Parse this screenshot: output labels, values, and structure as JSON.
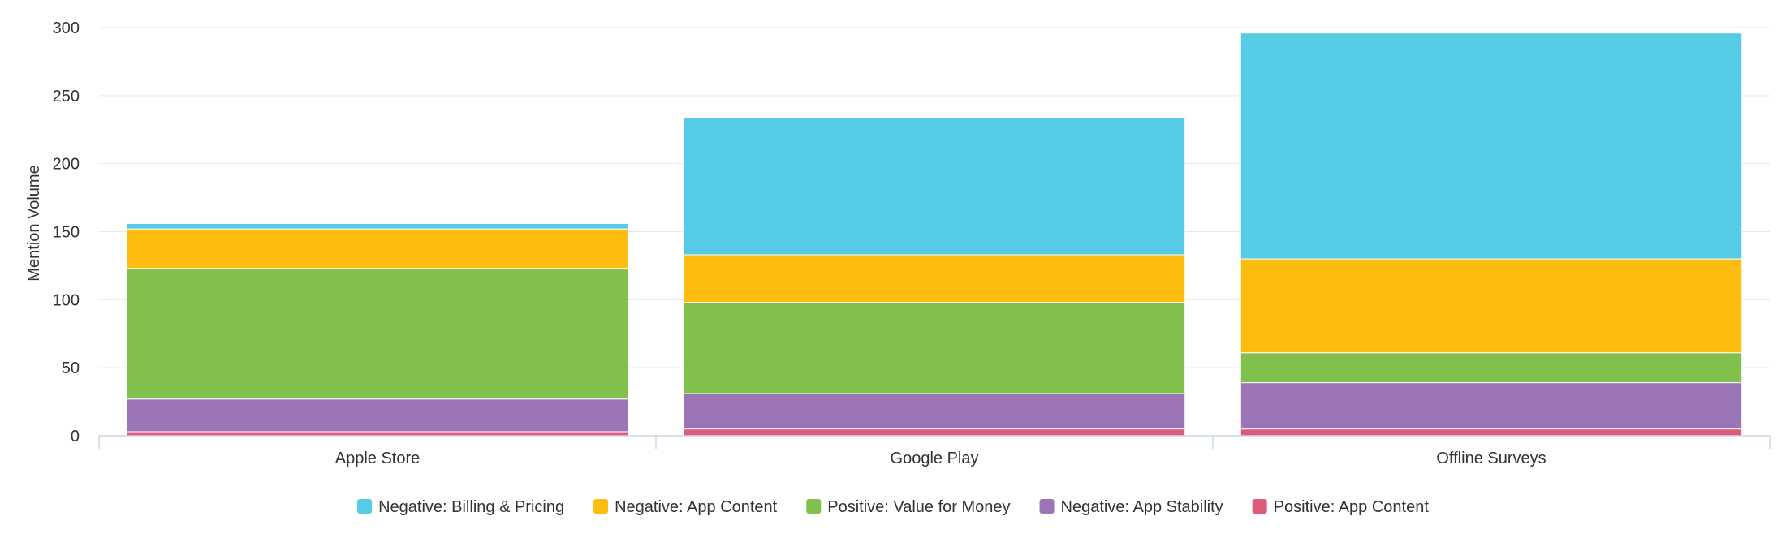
{
  "chart_data": {
    "type": "bar",
    "stacked": true,
    "categories": [
      "Apple Store",
      "Google Play",
      "Offline Surveys"
    ],
    "series": [
      {
        "name": "Positive: App Content",
        "color": "#e05a7a",
        "values": [
          3,
          5,
          5
        ]
      },
      {
        "name": "Negative: App Stability",
        "color": "#9b74b5",
        "values": [
          24,
          26,
          34
        ]
      },
      {
        "name": "Positive: Value for Money",
        "color": "#82c04e",
        "values": [
          96,
          67,
          22
        ]
      },
      {
        "name": "Negative: App Content",
        "color": "#fdbd10",
        "values": [
          29,
          35,
          69
        ]
      },
      {
        "name": "Negative: Billing & Pricing",
        "color": "#55cbe5",
        "values": [
          4,
          101,
          166
        ]
      }
    ],
    "legend_order": [
      "Negative: Billing & Pricing",
      "Negative: App Content",
      "Positive: Value for Money",
      "Negative: App Stability",
      "Positive: App Content"
    ],
    "ylabel": "Mention Volume",
    "xlabel": "",
    "ylim": [
      0,
      300
    ],
    "yticks": [
      0,
      50,
      100,
      150,
      200,
      250,
      300
    ],
    "grid": true,
    "legend_position": "bottom-center"
  }
}
